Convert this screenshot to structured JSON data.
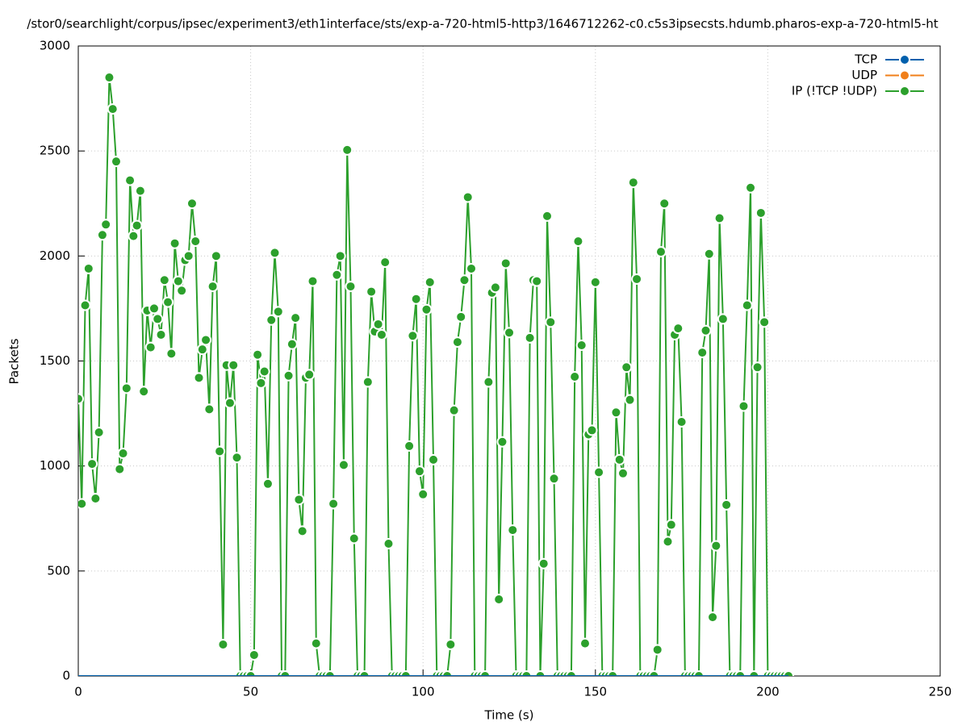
{
  "chart_data": {
    "type": "line",
    "title": "/stor0/searchlight/corpus/ipsec/experiment3/eth1interface/sts/exp-a-720-html5-http3/1646712262-c0.c5s3ipsecsts.hdumb.pharos-exp-a-720-html5-ht",
    "xlabel": "Time (s)",
    "ylabel": "Packets",
    "xlim": [
      0,
      250
    ],
    "xticks": [
      0,
      50,
      100,
      150,
      200,
      250
    ],
    "ylim": [
      0,
      3000
    ],
    "yticks": [
      0,
      500,
      1000,
      1500,
      2000,
      2500,
      3000
    ],
    "grid": true,
    "legend": "top-right",
    "x": [
      0,
      1,
      2,
      3,
      4,
      5,
      6,
      7,
      8,
      9,
      10,
      11,
      12,
      13,
      14,
      15,
      16,
      17,
      18,
      19,
      20,
      21,
      22,
      23,
      24,
      25,
      26,
      27,
      28,
      29,
      30,
      31,
      32,
      33,
      34,
      35,
      36,
      37,
      38,
      39,
      40,
      41,
      42,
      43,
      44,
      45,
      46,
      47,
      48,
      49,
      50,
      51,
      52,
      53,
      54,
      55,
      56,
      57,
      58,
      59,
      60,
      61,
      62,
      63,
      64,
      65,
      66,
      67,
      68,
      69,
      70,
      71,
      72,
      73,
      74,
      75,
      76,
      77,
      78,
      79,
      80,
      81,
      82,
      83,
      84,
      85,
      86,
      87,
      88,
      89,
      90,
      91,
      92,
      93,
      94,
      95,
      96,
      97,
      98,
      99,
      100,
      101,
      102,
      103,
      104,
      105,
      106,
      107,
      108,
      109,
      110,
      111,
      112,
      113,
      114,
      115,
      116,
      117,
      118,
      119,
      120,
      121,
      122,
      123,
      124,
      125,
      126,
      127,
      128,
      129,
      130,
      131,
      132,
      133,
      134,
      135,
      136,
      137,
      138,
      139,
      140,
      141,
      142,
      143,
      144,
      145,
      146,
      147,
      148,
      149,
      150,
      151,
      152,
      153,
      154,
      155,
      156,
      157,
      158,
      159,
      160,
      161,
      162,
      163,
      164,
      165,
      166,
      167,
      168,
      169,
      170,
      171,
      172,
      173,
      174,
      175,
      176,
      177,
      178,
      179,
      180,
      181,
      182,
      183,
      184,
      185,
      186,
      187,
      188,
      189,
      190,
      191,
      192,
      193,
      194,
      195,
      196,
      197,
      198,
      199,
      200,
      201,
      202,
      203,
      204,
      205,
      206
    ],
    "series": [
      {
        "name": "TCP",
        "color": "#0060ad",
        "values": [
          0,
          0,
          0,
          0,
          0,
          0,
          0,
          0,
          0,
          0,
          0,
          0,
          0,
          0,
          0,
          0,
          0,
          0,
          0,
          0,
          0,
          0,
          0,
          0,
          0,
          0,
          0,
          0,
          0,
          0,
          0,
          0,
          0,
          0,
          0,
          0,
          0,
          0,
          0,
          0,
          0,
          0,
          0,
          0,
          0,
          0,
          0,
          0,
          0,
          0,
          0,
          0,
          0,
          0,
          0,
          0,
          0,
          0,
          0,
          0,
          0,
          0,
          0,
          0,
          0,
          0,
          0,
          0,
          0,
          0,
          0,
          0,
          0,
          0,
          0,
          0,
          0,
          0,
          0,
          0,
          0,
          0,
          0,
          0,
          0,
          0,
          0,
          0,
          0,
          0,
          0,
          0,
          0,
          0,
          0,
          0,
          0,
          0,
          0,
          0,
          0,
          0,
          0,
          0,
          0,
          0,
          0,
          0,
          0,
          0,
          0,
          0,
          0,
          0,
          0,
          0,
          0,
          0,
          0,
          0,
          0,
          0,
          0,
          0,
          0,
          0,
          0,
          0,
          0,
          0,
          0,
          0,
          0,
          0,
          0,
          0,
          0,
          0,
          0,
          0,
          0,
          0,
          0,
          0,
          0,
          0,
          0,
          0,
          0,
          0,
          0,
          0,
          0,
          0,
          0,
          0,
          0,
          0,
          0,
          0,
          0,
          0,
          0,
          0,
          0,
          0,
          0,
          0,
          0,
          0,
          0,
          0,
          0,
          0,
          0,
          0,
          0,
          0,
          0,
          0,
          0,
          0,
          0,
          0,
          0,
          0,
          0,
          0,
          0,
          0,
          0,
          0,
          0,
          0,
          0,
          0,
          0,
          0,
          0,
          0,
          0,
          0,
          0,
          0,
          0,
          0,
          0
        ]
      },
      {
        "name": "UDP",
        "color": "#f07f1a",
        "values": [
          0,
          0,
          0,
          0,
          0,
          0,
          0,
          0,
          0,
          0,
          0,
          0,
          0,
          0,
          0,
          0,
          0,
          0,
          0,
          0,
          0,
          0,
          0,
          0,
          0,
          0,
          0,
          0,
          0,
          0,
          0,
          0,
          0,
          0,
          0,
          0,
          0,
          0,
          0,
          0,
          0,
          0,
          0,
          0,
          0,
          0,
          0,
          0,
          0,
          0,
          0,
          0,
          0,
          0,
          0,
          0,
          0,
          0,
          0,
          0,
          0,
          0,
          0,
          0,
          0,
          0,
          0,
          0,
          0,
          0,
          0,
          0,
          0,
          0,
          0,
          0,
          0,
          0,
          0,
          0,
          0,
          0,
          0,
          0,
          0,
          0,
          0,
          0,
          0,
          0,
          0,
          0,
          0,
          0,
          0,
          0,
          0,
          0,
          0,
          0,
          0,
          0,
          0,
          0,
          0,
          0,
          0,
          0,
          0,
          0,
          0,
          0,
          0,
          0,
          0,
          0,
          0,
          0,
          0,
          0,
          0,
          0,
          0,
          0,
          0,
          0,
          0,
          0,
          0,
          0,
          0,
          0,
          0,
          0,
          0,
          0,
          0,
          0,
          0,
          0,
          0,
          0,
          0,
          0,
          0,
          0,
          0,
          0,
          0,
          0,
          0,
          0,
          0,
          0,
          0,
          0,
          0,
          0,
          0,
          0,
          0,
          0,
          0,
          0,
          0,
          0,
          0,
          0,
          0,
          0,
          0,
          0,
          0,
          0,
          0,
          0,
          0,
          0,
          0,
          0,
          0,
          0,
          0,
          0,
          0,
          0,
          0,
          0,
          0,
          0,
          0,
          0,
          0,
          0,
          0,
          0,
          0,
          0,
          0,
          0,
          0,
          0,
          0,
          0,
          0,
          0,
          0
        ]
      },
      {
        "name": "IP (!TCP  !UDP)",
        "color": "#2ca02c",
        "values": [
          1320,
          820,
          1765,
          1940,
          1010,
          845,
          1160,
          2100,
          2150,
          2850,
          2700,
          2450,
          985,
          1060,
          1370,
          2360,
          2095,
          2145,
          2310,
          1355,
          1740,
          1565,
          1750,
          1700,
          1625,
          1885,
          1780,
          1535,
          2060,
          1880,
          1835,
          1980,
          2000,
          2250,
          2070,
          1420,
          1555,
          1600,
          1270,
          1855,
          2000,
          1070,
          150,
          1480,
          1300,
          1480,
          1040,
          0,
          0,
          0,
          0,
          100,
          1530,
          1395,
          1450,
          915,
          1695,
          2015,
          1735,
          0,
          0,
          1430,
          1580,
          1705,
          840,
          690,
          1420,
          1435,
          1880,
          155,
          0,
          0,
          0,
          0,
          820,
          1910,
          2000,
          1005,
          2505,
          1855,
          655,
          0,
          0,
          0,
          1400,
          1830,
          1640,
          1675,
          1625,
          1970,
          630,
          0,
          0,
          0,
          0,
          0,
          1095,
          1620,
          1795,
          975,
          865,
          1745,
          1875,
          1030,
          0,
          0,
          0,
          0,
          150,
          1265,
          1590,
          1710,
          1885,
          2280,
          1940,
          0,
          0,
          0,
          0,
          1400,
          1825,
          1850,
          365,
          1115,
          1965,
          1635,
          695,
          0,
          0,
          0,
          0,
          1610,
          1885,
          1880,
          0,
          535,
          2190,
          1685,
          940,
          0,
          0,
          0,
          0,
          0,
          1425,
          2070,
          1575,
          155,
          1150,
          1170,
          1875,
          970,
          0,
          0,
          0,
          0,
          1255,
          1030,
          965,
          1470,
          1315,
          2350,
          1890,
          0,
          0,
          0,
          0,
          0,
          125,
          2020,
          2250,
          640,
          720,
          1625,
          1655,
          1210,
          0,
          0,
          0,
          0,
          0,
          1540,
          1645,
          2010,
          280,
          620,
          2180,
          1700,
          815,
          0,
          0,
          0,
          0,
          1285,
          1765,
          2325,
          0,
          1470,
          2205,
          1685,
          0,
          0,
          0,
          0,
          0,
          0,
          0
        ]
      }
    ]
  }
}
